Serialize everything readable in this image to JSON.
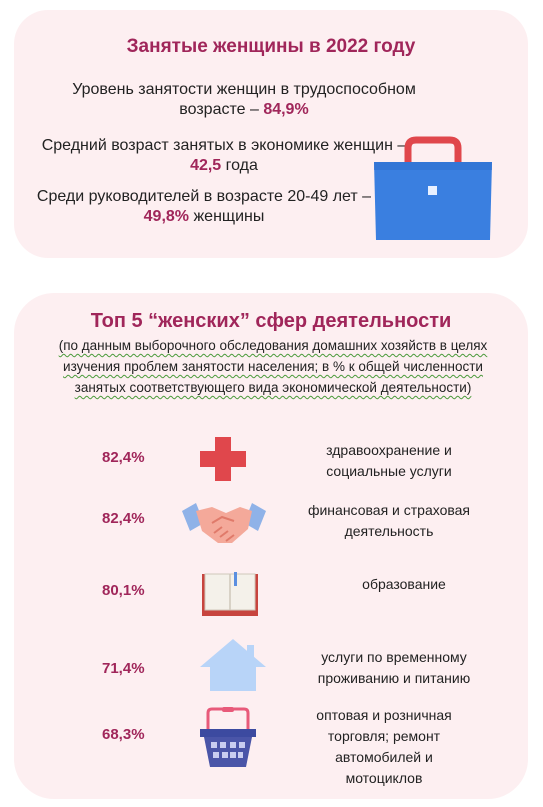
{
  "employed": {
    "title": "Занятые женщины в 2022 году",
    "stat1_text": "Уровень занятости женщин в трудоспособном возрасте – ",
    "stat1_value": "84,9%",
    "stat2_text": "Средний возраст занятых в экономике женщин – ",
    "stat2_value": "42,5",
    "stat2_suffix": " года",
    "stat3_text": "Среди руководителей в возрасте 20-49 лет – ",
    "stat3_value": "49,8%",
    "stat3_suffix": " женщины",
    "icon": "briefcase-icon"
  },
  "top5": {
    "title": "Топ 5 “женских” сфер деятельности",
    "subtitle": "(по данным выборочного обследования домашних хозяйств в целях изучения проблем занятости населения; в % к общей численности занятых соответствующего вида экономической деятельности)",
    "items": [
      {
        "value": "82,4%",
        "label": "здравоохранение и социальные услуги",
        "icon": "medical-cross-icon"
      },
      {
        "value": "82,4%",
        "label": "финансовая и страховая деятельность",
        "icon": "handshake-icon"
      },
      {
        "value": "80,1%",
        "label": "образование",
        "icon": "book-icon"
      },
      {
        "value": "71,4%",
        "label": "услуги по временному проживанию и питанию",
        "icon": "house-icon"
      },
      {
        "value": "68,3%",
        "label": "оптовая и розничная торговля; ремонт автомобилей и мотоциклов",
        "icon": "shopping-basket-icon"
      }
    ]
  },
  "colors": {
    "accent": "#a0265a",
    "card_bg": "#fdeff1",
    "briefcase": "#3a7fe0",
    "cross": "#e0474c",
    "house": "#b8d4f8",
    "basket": "#4a55a8"
  }
}
